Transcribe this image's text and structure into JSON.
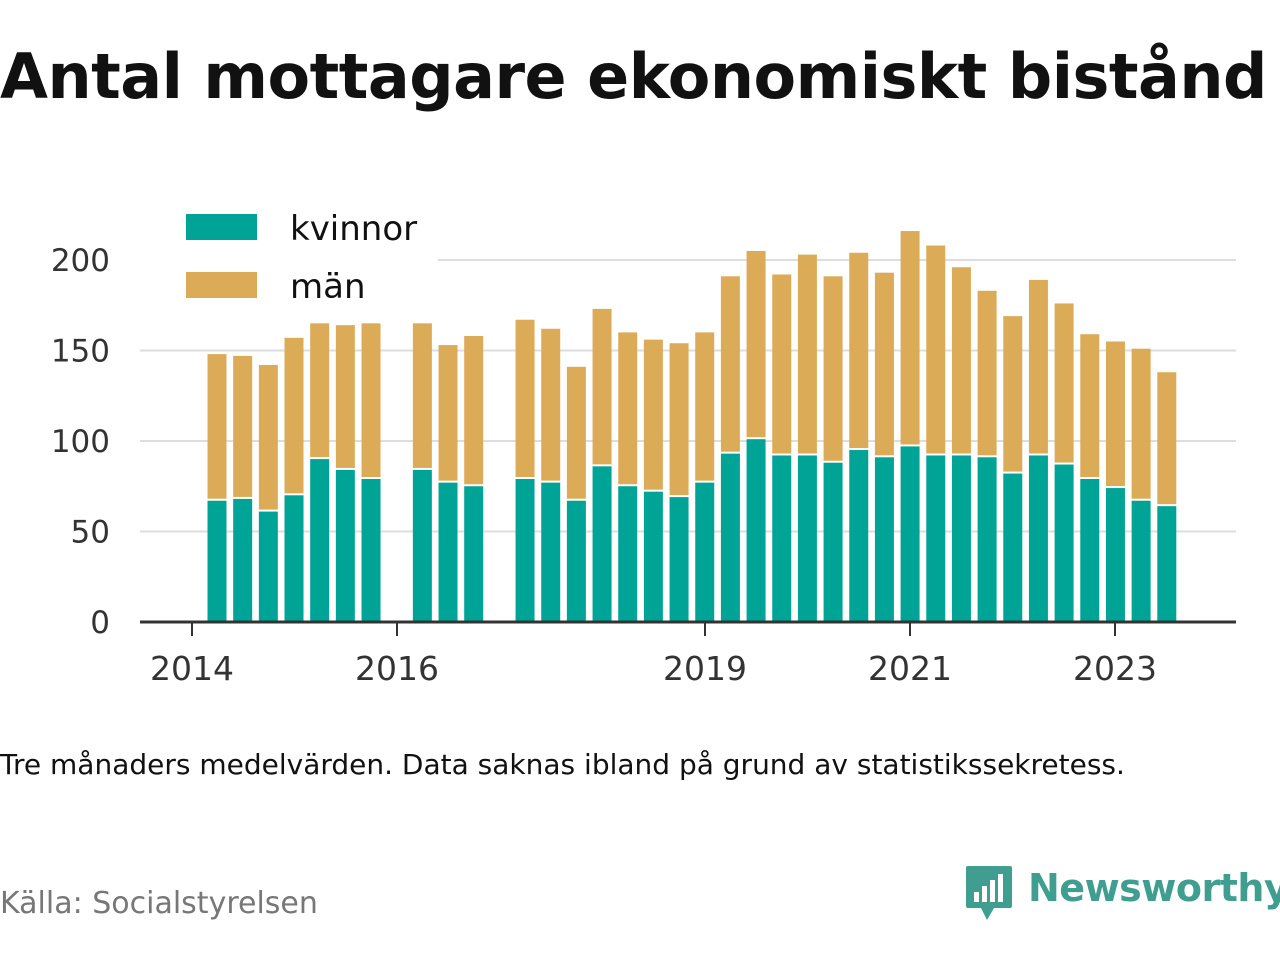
{
  "title": "Antal mottagare ekonomiskt bistånd",
  "note": "Tre månaders medelvärden. Data saknas ibland på grund av statistikssekretess.",
  "source": "Källa: Socialstyrelsen",
  "brand": {
    "name": "Newsworthy",
    "icon": "newsworthy-logo-icon",
    "color": "#3f9e8f"
  },
  "colors": {
    "kvinnor": "#00a497",
    "man": "#dcab58",
    "grid": "#dddddd",
    "axis": "#333333"
  },
  "chart_data": {
    "type": "bar",
    "stacked": true,
    "title": "Antal mottagare ekonomiskt bistånd",
    "xlabel": "",
    "ylabel": "",
    "ylim": [
      0,
      215
    ],
    "yticks": [
      0,
      50,
      100,
      150,
      200
    ],
    "xticks": [
      "2014",
      "2016",
      "2019",
      "2021",
      "2023"
    ],
    "legend": {
      "position": "top-left",
      "entries": [
        "kvinnor",
        "män"
      ]
    },
    "grid": "horizontal",
    "series": [
      {
        "name": "kvinnor",
        "values": [
          67,
          68,
          61,
          70,
          90,
          84,
          79,
          84,
          77,
          75,
          79,
          77,
          67,
          86,
          75,
          72,
          69,
          77,
          93,
          101,
          92,
          92,
          88,
          95,
          91,
          97,
          92,
          92,
          91,
          82,
          92,
          87,
          79,
          74,
          67,
          64
        ]
      },
      {
        "name": "män",
        "values": [
          81,
          79,
          81,
          87,
          75,
          80,
          86,
          81,
          76,
          83,
          88,
          85,
          74,
          87,
          85,
          84,
          85,
          83,
          98,
          104,
          100,
          111,
          103,
          109,
          102,
          119,
          116,
          104,
          92,
          87,
          97,
          89,
          80,
          81,
          84,
          74
        ]
      }
    ]
  }
}
